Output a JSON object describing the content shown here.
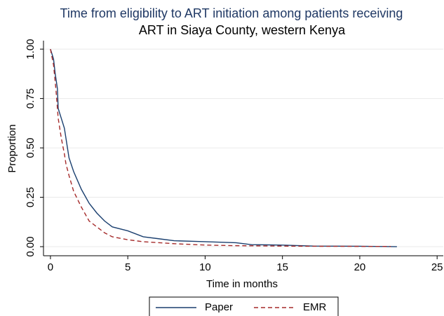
{
  "chart_data": {
    "type": "line",
    "title": [
      "Time from eligibility to ART initiation among patients receiving",
      "ART in Siaya County, western Kenya"
    ],
    "xlabel": "Time in months",
    "ylabel": "Proportion",
    "xlim": [
      -0.45,
      25.4
    ],
    "ylim": [
      -0.046,
      1.043
    ],
    "xticks": [
      0,
      5,
      10,
      15,
      20,
      25
    ],
    "yticks": [
      {
        "value": 0,
        "label": "0.00"
      },
      {
        "value": 0.25,
        "label": "0.25"
      },
      {
        "value": 0.5,
        "label": "0.50"
      },
      {
        "value": 0.75,
        "label": "0.75"
      },
      {
        "value": 1,
        "label": "1.00"
      }
    ],
    "grid": true,
    "legend": "bottom",
    "series": [
      {
        "name": "Paper",
        "color": "#1a3f6f",
        "dash": false,
        "x": [
          0,
          0.2,
          0.3,
          0.45,
          0.5,
          0.7,
          0.9,
          1.0,
          1.2,
          1.5,
          2,
          2.5,
          3,
          3.5,
          4,
          5,
          6,
          7,
          8,
          10,
          12,
          13,
          15,
          17,
          20,
          22.4
        ],
        "values": [
          1.0,
          0.95,
          0.88,
          0.8,
          0.7,
          0.65,
          0.6,
          0.55,
          0.45,
          0.38,
          0.29,
          0.22,
          0.17,
          0.13,
          0.1,
          0.08,
          0.05,
          0.04,
          0.03,
          0.025,
          0.02,
          0.01,
          0.008,
          0.003,
          0.002,
          0.0
        ]
      },
      {
        "name": "EMR",
        "color": "#a52a2a",
        "dash": true,
        "x": [
          0,
          0.2,
          0.35,
          0.5,
          0.7,
          0.9,
          1.0,
          1.2,
          1.5,
          2,
          2.5,
          3,
          3.5,
          4,
          5,
          6,
          8,
          10,
          12,
          15,
          17,
          22
        ],
        "values": [
          1.0,
          0.92,
          0.8,
          0.65,
          0.55,
          0.47,
          0.42,
          0.36,
          0.28,
          0.2,
          0.13,
          0.1,
          0.07,
          0.05,
          0.035,
          0.025,
          0.015,
          0.008,
          0.005,
          0.003,
          0.002,
          0.001
        ]
      }
    ]
  }
}
